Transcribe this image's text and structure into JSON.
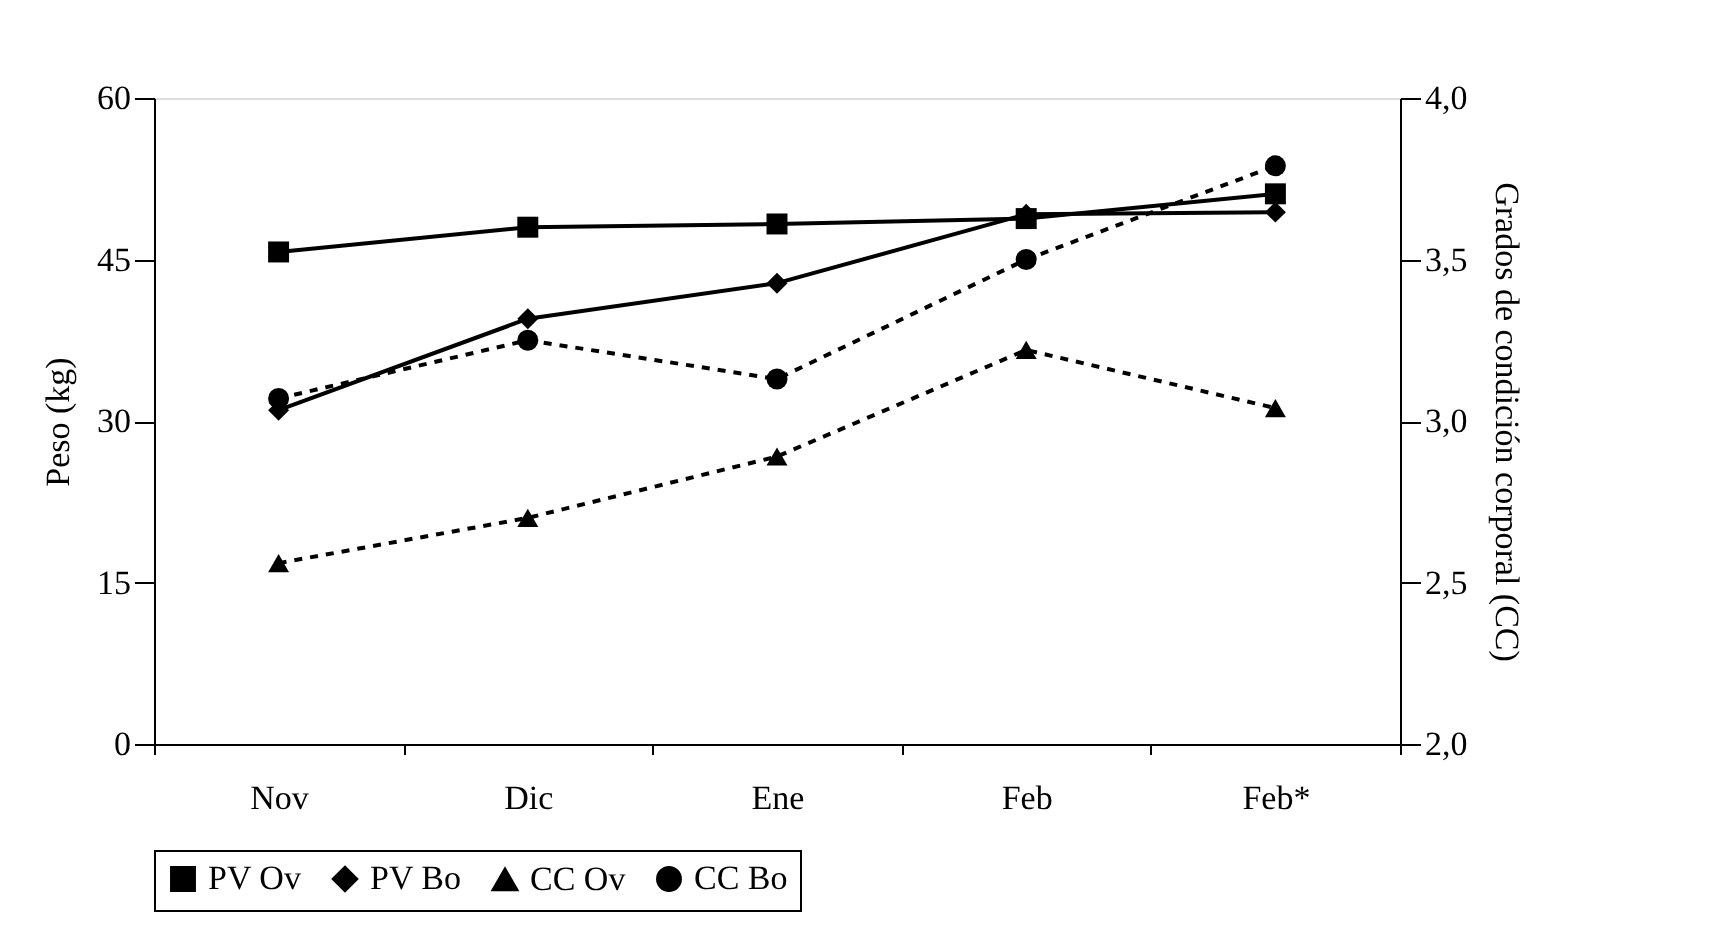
{
  "chart_data": {
    "type": "line",
    "xlabel": null,
    "ylabel": "Peso (kg)",
    "y2label": "Grados de condición corporal (CC)",
    "categories": [
      "Nov",
      "Dic",
      "Ene",
      "Feb",
      "Feb*"
    ],
    "ylim": [
      0,
      60
    ],
    "yticks": [
      0,
      15,
      30,
      45,
      60
    ],
    "y2lim": [
      2.0,
      4.0
    ],
    "y2ticks": [
      {
        "value": 2.0,
        "label": "2,0"
      },
      {
        "value": 2.5,
        "label": "2,5"
      },
      {
        "value": 3.0,
        "label": "3,0"
      },
      {
        "value": 3.5,
        "label": "3,5"
      },
      {
        "value": 4.0,
        "label": "4,0"
      }
    ],
    "grid": false,
    "legend": "bottom",
    "series": [
      {
        "name": "PV Ov",
        "color": "#000000",
        "marker": "square",
        "line_style": "solid",
        "values": [
          45.7,
          48.0,
          48.3,
          48.8,
          51.1
        ]
      },
      {
        "name": "PV Bo",
        "color": "#000000",
        "marker": "diamond",
        "line_style": "solid",
        "values": [
          31.0,
          39.5,
          42.8,
          49.2,
          49.4
        ]
      },
      {
        "name": "CC Ov",
        "color": "#000000",
        "marker": "triangle",
        "line_style": "dashed",
        "axis": "y2",
        "values": [
          2.56,
          2.7,
          2.89,
          3.22,
          3.04
        ]
      },
      {
        "name": "CC Bo",
        "color": "#000000",
        "marker": "circle",
        "line_style": "dashed",
        "axis": "y2",
        "values": [
          3.07,
          3.25,
          3.13,
          3.5,
          3.79
        ]
      }
    ]
  }
}
